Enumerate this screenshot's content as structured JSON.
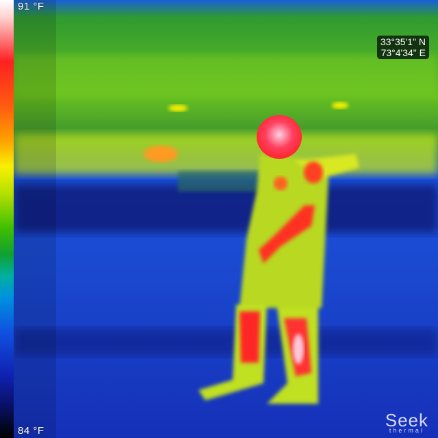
{
  "scale": {
    "max_label": "91 °F",
    "min_label": "84 °F"
  },
  "gps": {
    "latitude": "33°35'1\" N",
    "longitude": "73°4'34\" E"
  },
  "brand": {
    "name": "Seek",
    "tagline": "thermal"
  },
  "colors": {
    "hot": "#ff2020",
    "warm": "#f8f000",
    "mid": "#30b020",
    "cool": "#1a4fe0",
    "cold": "#081060"
  }
}
